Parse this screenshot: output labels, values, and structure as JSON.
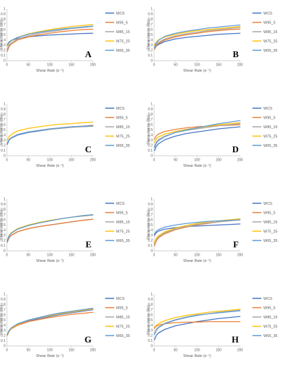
{
  "series_colors": [
    "#4472c4",
    "#ed7d31",
    "#a5a5a5",
    "#ffc000",
    "#5b9bd5"
  ],
  "chart_data": [
    {
      "type": "line",
      "panel_label": "A",
      "xlabel": "Shear Rate (s⁻¹)",
      "ylabel": "Shear stress (Pa)",
      "xlim": [
        0,
        200
      ],
      "ylim": [
        0,
        1
      ],
      "xticks": [
        0,
        50,
        100,
        150,
        200
      ],
      "yticks": [
        0,
        0.1,
        0.2,
        0.3,
        0.4,
        0.5,
        0.6,
        0.7,
        0.8,
        0.9,
        1
      ],
      "legend_position": "right",
      "x": [
        1,
        5,
        10,
        25,
        50,
        75,
        100,
        125,
        150,
        175,
        200
      ],
      "series": [
        {
          "name": "MCS",
          "values": [
            0.3,
            0.36,
            0.39,
            0.43,
            0.46,
            0.48,
            0.495,
            0.505,
            0.515,
            0.525,
            0.53
          ]
        },
        {
          "name": "M95_5",
          "values": [
            0.18,
            0.27,
            0.32,
            0.4,
            0.46,
            0.5,
            0.53,
            0.56,
            0.58,
            0.6,
            0.61
          ]
        },
        {
          "name": "M85_15",
          "values": [
            0.22,
            0.3,
            0.34,
            0.42,
            0.48,
            0.53,
            0.56,
            0.59,
            0.62,
            0.64,
            0.66
          ]
        },
        {
          "name": "M75_25",
          "values": [
            0.28,
            0.34,
            0.38,
            0.45,
            0.52,
            0.56,
            0.6,
            0.63,
            0.66,
            0.68,
            0.7
          ]
        },
        {
          "name": "M65_35",
          "values": [
            0.3,
            0.35,
            0.39,
            0.45,
            0.51,
            0.55,
            0.58,
            0.61,
            0.63,
            0.65,
            0.67
          ]
        }
      ]
    },
    {
      "type": "line",
      "panel_label": "B",
      "xlabel": "Shear Rate (s⁻¹)",
      "ylabel": "Shear stress (Pa)",
      "xlim": [
        0,
        200
      ],
      "ylim": [
        0,
        1
      ],
      "xticks": [
        0,
        50,
        100,
        150,
        200
      ],
      "yticks": [
        0,
        0.1,
        0.2,
        0.3,
        0.4,
        0.5,
        0.6,
        0.7,
        0.8,
        0.9,
        1
      ],
      "legend_position": "right",
      "x": [
        1,
        5,
        10,
        25,
        50,
        75,
        100,
        125,
        150,
        175,
        200
      ],
      "series": [
        {
          "name": "WCS",
          "values": [
            0.22,
            0.28,
            0.31,
            0.37,
            0.42,
            0.45,
            0.47,
            0.49,
            0.51,
            0.52,
            0.53
          ]
        },
        {
          "name": "W95_5",
          "values": [
            0.22,
            0.29,
            0.33,
            0.4,
            0.46,
            0.5,
            0.53,
            0.56,
            0.58,
            0.6,
            0.61
          ]
        },
        {
          "name": "W85_15",
          "values": [
            0.24,
            0.31,
            0.35,
            0.42,
            0.48,
            0.52,
            0.55,
            0.58,
            0.6,
            0.62,
            0.64
          ]
        },
        {
          "name": "W75_25",
          "values": [
            0.3,
            0.36,
            0.4,
            0.46,
            0.51,
            0.55,
            0.58,
            0.6,
            0.62,
            0.64,
            0.66
          ]
        },
        {
          "name": "W65_35",
          "values": [
            0.26,
            0.34,
            0.39,
            0.47,
            0.53,
            0.57,
            0.6,
            0.63,
            0.65,
            0.67,
            0.69
          ]
        }
      ]
    },
    {
      "type": "line",
      "panel_label": "C",
      "xlabel": "Shear Rate (s⁻¹)",
      "ylabel": "Shear stress (Pa)",
      "xlim": [
        0,
        200
      ],
      "ylim": [
        0,
        1
      ],
      "xticks": [
        0,
        50,
        100,
        150,
        200
      ],
      "yticks": [
        0,
        0.1,
        0.2,
        0.3,
        0.4,
        0.5,
        0.6,
        0.7,
        0.8,
        0.9,
        1
      ],
      "legend_position": "right",
      "x": [
        1,
        5,
        10,
        25,
        50,
        75,
        100,
        125,
        150,
        175,
        200
      ],
      "series": [
        {
          "name": "MCS",
          "values": [
            0.22,
            0.3,
            0.34,
            0.4,
            0.45,
            0.48,
            0.51,
            0.53,
            0.55,
            0.57,
            0.58
          ]
        },
        {
          "name": "M95_5",
          "values": [
            0.24,
            0.31,
            0.35,
            0.41,
            0.46,
            0.49,
            0.52,
            0.54,
            0.56,
            0.57,
            0.59
          ]
        },
        {
          "name": "M85_15",
          "values": [
            0.25,
            0.31,
            0.35,
            0.41,
            0.46,
            0.49,
            0.51,
            0.53,
            0.55,
            0.56,
            0.57
          ]
        },
        {
          "name": "M75_25",
          "values": [
            0.3,
            0.37,
            0.41,
            0.48,
            0.53,
            0.56,
            0.59,
            0.61,
            0.62,
            0.64,
            0.65
          ]
        },
        {
          "name": "M65_35",
          "values": [
            0.23,
            0.3,
            0.34,
            0.41,
            0.46,
            0.49,
            0.52,
            0.54,
            0.56,
            0.57,
            0.58
          ]
        }
      ]
    },
    {
      "type": "line",
      "panel_label": "D",
      "xlabel": "Shear Rate (s⁻¹)",
      "ylabel": "Shear stress (Pa)",
      "xlim": [
        0,
        200
      ],
      "ylim": [
        0,
        1
      ],
      "xticks": [
        0,
        50,
        100,
        150,
        200
      ],
      "yticks": [
        0,
        0.1,
        0.2,
        0.3,
        0.4,
        0.5,
        0.6,
        0.7,
        0.8,
        0.9,
        1
      ],
      "legend_position": "right",
      "x": [
        1,
        5,
        10,
        25,
        50,
        75,
        100,
        125,
        150,
        175,
        200
      ],
      "series": [
        {
          "name": "WCS",
          "values": [
            0.1,
            0.18,
            0.23,
            0.31,
            0.38,
            0.43,
            0.46,
            0.49,
            0.52,
            0.54,
            0.56
          ]
        },
        {
          "name": "W95_5",
          "values": [
            0.32,
            0.38,
            0.42,
            0.47,
            0.51,
            0.54,
            0.56,
            0.57,
            0.58,
            0.59,
            0.6
          ]
        },
        {
          "name": "W85_15",
          "values": [
            0.18,
            0.26,
            0.31,
            0.38,
            0.45,
            0.49,
            0.52,
            0.55,
            0.58,
            0.6,
            0.62
          ]
        },
        {
          "name": "W75_25",
          "values": [
            0.26,
            0.32,
            0.36,
            0.42,
            0.47,
            0.51,
            0.54,
            0.57,
            0.6,
            0.62,
            0.64
          ]
        },
        {
          "name": "W65_35",
          "values": [
            0.16,
            0.24,
            0.29,
            0.37,
            0.45,
            0.5,
            0.54,
            0.58,
            0.62,
            0.65,
            0.68
          ]
        }
      ]
    },
    {
      "type": "line",
      "panel_label": "E",
      "xlabel": "Shear Rate (s⁻¹)",
      "ylabel": "Shear stress (Pa)",
      "xlim": [
        0,
        200
      ],
      "ylim": [
        0,
        1
      ],
      "xticks": [
        0,
        50,
        100,
        150,
        200
      ],
      "yticks": [
        0,
        0.1,
        0.2,
        0.3,
        0.4,
        0.5,
        0.6,
        0.7,
        0.8,
        0.9,
        1
      ],
      "legend_position": "right",
      "x": [
        1,
        5,
        10,
        25,
        50,
        75,
        100,
        125,
        150,
        175,
        200
      ],
      "series": [
        {
          "name": "MCS",
          "values": [
            0.17,
            0.25,
            0.3,
            0.37,
            0.43,
            0.47,
            0.5,
            0.53,
            0.56,
            0.59,
            0.61
          ]
        },
        {
          "name": "M95_5",
          "values": [
            0.18,
            0.26,
            0.3,
            0.37,
            0.43,
            0.47,
            0.5,
            0.53,
            0.56,
            0.59,
            0.61
          ]
        },
        {
          "name": "M85_15",
          "values": [
            0.2,
            0.29,
            0.34,
            0.42,
            0.49,
            0.54,
            0.58,
            0.62,
            0.65,
            0.67,
            0.69
          ]
        },
        {
          "name": "M75_25",
          "values": [
            0.2,
            0.29,
            0.35,
            0.43,
            0.5,
            0.55,
            0.59,
            0.62,
            0.65,
            0.68,
            0.7
          ]
        },
        {
          "name": "M65_35",
          "values": [
            0.2,
            0.29,
            0.34,
            0.42,
            0.49,
            0.54,
            0.58,
            0.62,
            0.65,
            0.68,
            0.7
          ]
        }
      ]
    },
    {
      "type": "line",
      "panel_label": "F",
      "xlabel": "Shear Rate (s⁻¹)",
      "ylabel": "Shear stress (Pa)",
      "xlim": [
        0,
        200
      ],
      "ylim": [
        0,
        1
      ],
      "xticks": [
        0,
        50,
        100,
        150,
        200
      ],
      "yticks": [
        0,
        0.1,
        0.2,
        0.3,
        0.4,
        0.5,
        0.6,
        0.7,
        0.8,
        0.9,
        1
      ],
      "legend_position": "right",
      "x": [
        1,
        5,
        10,
        25,
        50,
        75,
        100,
        125,
        150,
        175,
        200
      ],
      "series": [
        {
          "name": "WCS",
          "values": [
            0.3,
            0.35,
            0.38,
            0.42,
            0.45,
            0.47,
            0.48,
            0.49,
            0.5,
            0.51,
            0.52
          ]
        },
        {
          "name": "W95_5",
          "values": [
            0.1,
            0.19,
            0.25,
            0.33,
            0.41,
            0.46,
            0.5,
            0.53,
            0.56,
            0.58,
            0.6
          ]
        },
        {
          "name": "W85_15",
          "values": [
            0.14,
            0.22,
            0.27,
            0.35,
            0.42,
            0.47,
            0.51,
            0.54,
            0.56,
            0.58,
            0.6
          ]
        },
        {
          "name": "W75_25",
          "values": [
            0.16,
            0.24,
            0.29,
            0.37,
            0.44,
            0.49,
            0.53,
            0.56,
            0.58,
            0.6,
            0.62
          ]
        },
        {
          "name": "W65_35",
          "values": [
            0.32,
            0.38,
            0.41,
            0.46,
            0.5,
            0.53,
            0.55,
            0.57,
            0.58,
            0.59,
            0.6
          ]
        }
      ]
    },
    {
      "type": "line",
      "panel_label": "G",
      "xlabel": "Shear Rate (s⁻¹)",
      "ylabel": "Shear stress (Pa)",
      "xlim": [
        0,
        200
      ],
      "ylim": [
        0,
        1
      ],
      "xticks": [
        0,
        50,
        100,
        150,
        200
      ],
      "yticks": [
        0,
        0.1,
        0.2,
        0.3,
        0.4,
        0.5,
        0.6,
        0.7,
        0.8,
        0.9,
        1
      ],
      "legend_position": "right",
      "x": [
        1,
        5,
        10,
        25,
        50,
        75,
        100,
        125,
        150,
        175,
        200
      ],
      "series": [
        {
          "name": "MCS",
          "values": [
            0.2,
            0.28,
            0.33,
            0.41,
            0.48,
            0.53,
            0.57,
            0.61,
            0.64,
            0.67,
            0.7
          ]
        },
        {
          "name": "M95_5",
          "values": [
            0.2,
            0.28,
            0.33,
            0.4,
            0.47,
            0.51,
            0.55,
            0.58,
            0.61,
            0.63,
            0.65
          ]
        },
        {
          "name": "M85_15",
          "values": [
            0.21,
            0.29,
            0.34,
            0.42,
            0.49,
            0.54,
            0.58,
            0.62,
            0.65,
            0.68,
            0.71
          ]
        },
        {
          "name": "M75_25",
          "values": [
            0.21,
            0.29,
            0.34,
            0.42,
            0.5,
            0.55,
            0.59,
            0.63,
            0.66,
            0.69,
            0.72
          ]
        },
        {
          "name": "M65_35",
          "values": [
            0.22,
            0.3,
            0.35,
            0.43,
            0.5,
            0.55,
            0.6,
            0.64,
            0.67,
            0.7,
            0.73
          ]
        }
      ]
    },
    {
      "type": "line",
      "panel_label": "H",
      "xlabel": "Shear Rate (s⁻¹)",
      "ylabel": "Shear stress (Pa)",
      "xlim": [
        0,
        200
      ],
      "ylim": [
        0,
        1
      ],
      "xticks": [
        0,
        50,
        100,
        150,
        200
      ],
      "yticks": [
        0,
        0.1,
        0.2,
        0.3,
        0.4,
        0.5,
        0.6,
        0.7,
        0.8,
        0.9,
        1
      ],
      "legend_position": "right",
      "x": [
        1,
        5,
        10,
        25,
        50,
        75,
        100,
        125,
        150,
        175,
        200
      ],
      "series": [
        {
          "name": "WCS",
          "values": [
            0.12,
            0.2,
            0.25,
            0.32,
            0.39,
            0.43,
            0.47,
            0.5,
            0.53,
            0.55,
            0.57
          ]
        },
        {
          "name": "W95_5",
          "values": [
            0.34,
            0.38,
            0.4,
            0.43,
            0.45,
            0.46,
            0.46,
            0.47,
            0.47,
            0.47,
            0.47
          ]
        },
        {
          "name": "W85_15",
          "values": [
            0.24,
            0.32,
            0.36,
            0.44,
            0.51,
            0.56,
            0.6,
            0.62,
            0.65,
            0.67,
            0.69
          ]
        },
        {
          "name": "W75_25",
          "values": [
            0.36,
            0.4,
            0.43,
            0.49,
            0.55,
            0.59,
            0.62,
            0.65,
            0.67,
            0.69,
            0.71
          ]
        },
        {
          "name": "W65_35",
          "values": [
            0.22,
            0.3,
            0.35,
            0.43,
            0.5,
            0.55,
            0.59,
            0.62,
            0.64,
            0.66,
            0.68
          ]
        }
      ]
    }
  ]
}
